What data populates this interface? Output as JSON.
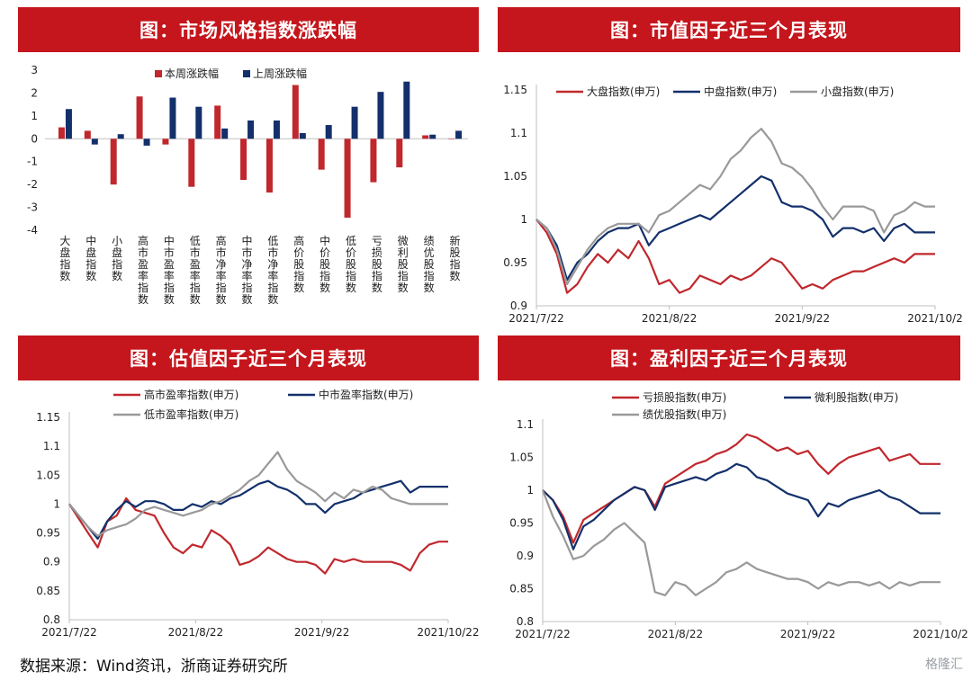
{
  "footer": "数据来源：Wind资讯，浙商证券研究所",
  "watermark": "格隆汇",
  "colors": {
    "banner": "#c4161c",
    "red": "#c0282d",
    "navy": "#13306b",
    "gray": "#999999"
  },
  "chart_data": [
    {
      "title": "图：市场风格指数涨跌幅",
      "type": "bar",
      "categories": [
        "大盘指数",
        "中盘指数",
        "小盘指数",
        "高市盈率指数",
        "中市盈率指数",
        "低市盈率指数",
        "高市净率指数",
        "中市净率指数",
        "低市净率指数",
        "高价股指数",
        "中价股指数",
        "低价股指数",
        "亏损股指数",
        "微利股指数",
        "绩优股指数",
        "新股指数"
      ],
      "series": [
        {
          "name": "本周涨跌幅",
          "color": "#c0282d",
          "values": [
            0.5,
            0.35,
            -2.0,
            1.85,
            -0.25,
            -2.1,
            1.45,
            -1.8,
            -2.35,
            2.35,
            -1.35,
            -3.45,
            -1.9,
            -1.25,
            0.15,
            0.0
          ]
        },
        {
          "name": "上周涨跌幅",
          "color": "#13306b",
          "values": [
            1.3,
            -0.25,
            0.2,
            -0.3,
            1.8,
            1.4,
            0.45,
            0.8,
            0.8,
            0.25,
            0.6,
            1.4,
            2.05,
            2.5,
            0.18,
            0.35
          ]
        }
      ],
      "yticks": [
        "3",
        "2",
        "1",
        "0",
        "-1",
        "-2",
        "-3",
        "-4"
      ],
      "ylim": [
        -4,
        3
      ]
    },
    {
      "title": "图：市值因子近三个月表现",
      "type": "line",
      "xticks": [
        "2021/7/22",
        "2021/8/22",
        "2021/9/22",
        "2021/10/2"
      ],
      "yticks": [
        "1.15",
        "1.1",
        "1.05",
        "1",
        "0.95",
        "0.9"
      ],
      "ylim": [
        0.9,
        1.15
      ],
      "series": [
        {
          "name": "大盘指数(申万)",
          "color": "#c0282d",
          "values": [
            1.0,
            0.985,
            0.96,
            0.915,
            0.925,
            0.945,
            0.96,
            0.95,
            0.965,
            0.955,
            0.975,
            0.955,
            0.925,
            0.93,
            0.915,
            0.92,
            0.935,
            0.93,
            0.925,
            0.935,
            0.93,
            0.935,
            0.945,
            0.955,
            0.95,
            0.935,
            0.92,
            0.925,
            0.92,
            0.93,
            0.935,
            0.94,
            0.94,
            0.945,
            0.95,
            0.955,
            0.95,
            0.96,
            0.96,
            0.96
          ]
        },
        {
          "name": "中盘指数(申万)",
          "color": "#13306b",
          "values": [
            1.0,
            0.99,
            0.97,
            0.93,
            0.95,
            0.96,
            0.975,
            0.985,
            0.99,
            0.99,
            0.995,
            0.97,
            0.985,
            0.99,
            0.995,
            1.0,
            1.005,
            1.0,
            1.01,
            1.02,
            1.03,
            1.04,
            1.05,
            1.045,
            1.02,
            1.015,
            1.015,
            1.01,
            1.0,
            0.98,
            0.99,
            0.99,
            0.985,
            0.99,
            0.975,
            0.99,
            0.995,
            0.985,
            0.985,
            0.985
          ]
        },
        {
          "name": "小盘指数(申万)",
          "color": "#999999",
          "values": [
            1.0,
            0.99,
            0.965,
            0.925,
            0.945,
            0.965,
            0.98,
            0.99,
            0.995,
            0.995,
            0.995,
            0.985,
            1.005,
            1.01,
            1.02,
            1.03,
            1.04,
            1.035,
            1.05,
            1.07,
            1.08,
            1.095,
            1.105,
            1.09,
            1.065,
            1.06,
            1.05,
            1.035,
            1.015,
            1.0,
            1.015,
            1.015,
            1.015,
            1.01,
            0.985,
            1.005,
            1.01,
            1.02,
            1.015,
            1.015
          ]
        }
      ]
    },
    {
      "title": "图：估值因子近三个月表现",
      "type": "line",
      "xticks": [
        "2021/7/22",
        "2021/8/22",
        "2021/9/22",
        "2021/10/22"
      ],
      "yticks": [
        "1.15",
        "1.1",
        "1.05",
        "1",
        "0.95",
        "0.9",
        "0.85",
        "0.8"
      ],
      "ylim": [
        0.8,
        1.15
      ],
      "series": [
        {
          "name": "高市盈率指数(申万)",
          "color": "#c0282d",
          "values": [
            1.0,
            0.975,
            0.95,
            0.925,
            0.97,
            0.98,
            1.01,
            0.99,
            0.985,
            0.98,
            0.95,
            0.925,
            0.915,
            0.93,
            0.925,
            0.955,
            0.945,
            0.93,
            0.895,
            0.9,
            0.91,
            0.925,
            0.915,
            0.905,
            0.9,
            0.9,
            0.895,
            0.88,
            0.905,
            0.9,
            0.905,
            0.9,
            0.9,
            0.9,
            0.9,
            0.895,
            0.885,
            0.915,
            0.93,
            0.935,
            0.935
          ]
        },
        {
          "name": "中市盈率指数(申万)",
          "color": "#13306b",
          "values": [
            1.0,
            0.98,
            0.96,
            0.94,
            0.97,
            0.99,
            1.005,
            0.995,
            1.005,
            1.005,
            1.0,
            0.99,
            0.99,
            1.0,
            0.995,
            1.005,
            1.0,
            1.01,
            1.015,
            1.025,
            1.035,
            1.04,
            1.03,
            1.025,
            1.015,
            1.0,
            1.0,
            0.985,
            1.0,
            1.005,
            1.01,
            1.02,
            1.025,
            1.03,
            1.035,
            1.04,
            1.02,
            1.03,
            1.03,
            1.03,
            1.03
          ]
        },
        {
          "name": "低市盈率指数(申万)",
          "color": "#999999",
          "values": [
            1.0,
            0.98,
            0.96,
            0.945,
            0.955,
            0.96,
            0.965,
            0.975,
            0.99,
            0.995,
            0.99,
            0.985,
            0.98,
            0.985,
            0.99,
            1.0,
            1.005,
            1.015,
            1.025,
            1.04,
            1.05,
            1.07,
            1.09,
            1.06,
            1.04,
            1.03,
            1.02,
            1.005,
            1.02,
            1.01,
            1.025,
            1.02,
            1.03,
            1.025,
            1.01,
            1.005,
            1.0,
            1.0,
            1.0,
            1.0,
            1.0
          ]
        }
      ]
    },
    {
      "title": "图：盈利因子近三个月表现",
      "type": "line",
      "xticks": [
        "2021/7/22",
        "2021/8/22",
        "2021/9/22",
        "2021/10/2"
      ],
      "yticks": [
        "1.1",
        "1.05",
        "1",
        "0.95",
        "0.9",
        "0.85",
        "0.8"
      ],
      "ylim": [
        0.8,
        1.1
      ],
      "series": [
        {
          "name": "亏损股指数(申万)",
          "color": "#c0282d",
          "values": [
            1.0,
            0.985,
            0.96,
            0.92,
            0.955,
            0.965,
            0.975,
            0.985,
            0.995,
            1.005,
            1.0,
            0.975,
            1.01,
            1.02,
            1.03,
            1.04,
            1.045,
            1.055,
            1.06,
            1.07,
            1.085,
            1.08,
            1.07,
            1.06,
            1.065,
            1.055,
            1.06,
            1.04,
            1.025,
            1.04,
            1.05,
            1.055,
            1.06,
            1.065,
            1.045,
            1.05,
            1.055,
            1.04,
            1.04,
            1.04
          ]
        },
        {
          "name": "微利股指数(申万)",
          "color": "#13306b",
          "values": [
            1.0,
            0.985,
            0.955,
            0.91,
            0.945,
            0.955,
            0.97,
            0.985,
            0.995,
            1.005,
            1.0,
            0.97,
            1.005,
            1.01,
            1.015,
            1.02,
            1.015,
            1.025,
            1.03,
            1.04,
            1.035,
            1.02,
            1.015,
            1.005,
            0.995,
            0.99,
            0.985,
            0.96,
            0.98,
            0.975,
            0.985,
            0.99,
            0.995,
            1.0,
            0.99,
            0.985,
            0.975,
            0.965,
            0.965,
            0.965
          ]
        },
        {
          "name": "绩优股指数(申万)",
          "color": "#999999",
          "values": [
            1.0,
            0.96,
            0.93,
            0.895,
            0.9,
            0.915,
            0.925,
            0.94,
            0.95,
            0.935,
            0.92,
            0.845,
            0.84,
            0.86,
            0.855,
            0.84,
            0.85,
            0.86,
            0.875,
            0.88,
            0.89,
            0.88,
            0.875,
            0.87,
            0.865,
            0.865,
            0.86,
            0.85,
            0.86,
            0.855,
            0.86,
            0.86,
            0.855,
            0.86,
            0.85,
            0.86,
            0.855,
            0.86,
            0.86,
            0.86
          ]
        }
      ]
    }
  ]
}
